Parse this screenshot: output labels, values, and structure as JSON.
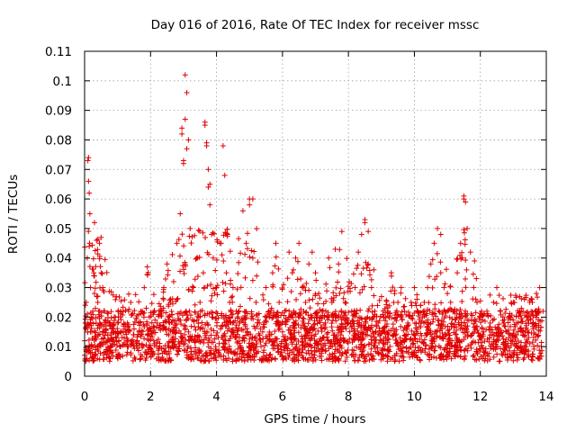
{
  "chart_data": {
    "type": "scatter",
    "title": "Day 016 of 2016, Rate Of TEC Index for receiver mssc",
    "xlabel": "GPS time / hours",
    "ylabel": "ROTI / TECUs",
    "xlim": [
      0,
      14
    ],
    "ylim": [
      0,
      0.11
    ],
    "xticks": [
      "0",
      "2",
      "4",
      "6",
      "8",
      "10",
      "12",
      "14"
    ],
    "yticks": [
      "0",
      "0.01",
      "0.02",
      "0.03",
      "0.04",
      "0.05",
      "0.06",
      "0.07",
      "0.08",
      "0.09",
      "0.1",
      "0.11"
    ],
    "grid": true,
    "marker": "+",
    "series": [
      {
        "name": "ROTI",
        "color": "#e00000",
        "x": [
          0.0,
          0.02,
          0.05,
          0.08,
          0.1,
          0.12,
          0.15,
          0.18,
          0.2,
          0.22,
          0.25,
          0.28,
          0.3,
          0.35,
          0.4,
          0.45,
          0.5,
          0.55,
          0.6,
          0.65,
          0.7,
          0.75,
          0.8,
          0.9,
          1.0,
          1.1,
          1.2,
          1.3,
          1.4,
          1.5,
          1.6,
          1.7,
          1.8,
          1.9,
          2.0,
          2.1,
          2.2,
          2.3,
          2.4,
          2.5,
          2.6,
          2.7,
          2.8,
          2.9,
          2.95,
          3.0,
          3.05,
          3.1,
          3.15,
          3.2,
          3.3,
          3.4,
          3.5,
          3.6,
          3.65,
          3.7,
          3.75,
          3.8,
          3.85,
          3.9,
          4.0,
          4.1,
          4.2,
          4.3,
          4.4,
          4.5,
          4.6,
          4.7,
          4.8,
          4.9,
          5.0,
          5.1,
          5.2,
          5.3,
          5.4,
          5.5,
          5.6,
          5.7,
          5.8,
          5.9,
          6.0,
          6.1,
          6.2,
          6.3,
          6.4,
          6.5,
          6.6,
          6.7,
          6.8,
          6.9,
          7.0,
          7.1,
          7.2,
          7.3,
          7.4,
          7.5,
          7.6,
          7.7,
          7.8,
          7.9,
          8.0,
          8.1,
          8.2,
          8.3,
          8.4,
          8.5,
          8.6,
          8.7,
          8.8,
          8.9,
          9.0,
          9.1,
          9.2,
          9.3,
          9.4,
          9.5,
          9.6,
          9.7,
          9.8,
          9.9,
          10.0,
          10.1,
          10.2,
          10.3,
          10.4,
          10.5,
          10.6,
          10.7,
          10.8,
          10.9,
          11.0,
          11.1,
          11.2,
          11.3,
          11.4,
          11.5,
          11.6,
          11.7,
          11.8,
          11.9,
          12.0,
          12.1,
          12.2,
          12.3,
          12.4,
          12.5,
          12.6,
          12.7,
          12.8,
          12.9,
          13.0,
          13.1,
          13.2,
          13.3,
          13.4,
          13.5,
          13.6,
          13.7,
          13.8,
          13.9,
          0.12,
          0.14,
          0.16,
          0.3,
          0.5,
          2.95,
          3.05,
          3.1,
          3.0,
          3.65,
          3.7,
          3.75,
          3.8,
          4.25,
          5.0,
          5.1,
          8.5,
          8.6,
          11.5,
          11.55,
          10.8,
          7.6,
          6.2
        ],
        "y": [
          0.012,
          0.018,
          0.025,
          0.04,
          0.073,
          0.066,
          0.045,
          0.03,
          0.02,
          0.015,
          0.022,
          0.035,
          0.028,
          0.018,
          0.025,
          0.045,
          0.035,
          0.03,
          0.022,
          0.016,
          0.012,
          0.018,
          0.014,
          0.02,
          0.015,
          0.022,
          0.013,
          0.018,
          0.025,
          0.016,
          0.012,
          0.014,
          0.02,
          0.037,
          0.015,
          0.012,
          0.018,
          0.022,
          0.03,
          0.038,
          0.025,
          0.032,
          0.045,
          0.055,
          0.082,
          0.073,
          0.102,
          0.096,
          0.08,
          0.05,
          0.03,
          0.04,
          0.025,
          0.035,
          0.085,
          0.078,
          0.064,
          0.058,
          0.048,
          0.04,
          0.03,
          0.045,
          0.078,
          0.035,
          0.025,
          0.03,
          0.022,
          0.018,
          0.056,
          0.045,
          0.06,
          0.04,
          0.025,
          0.018,
          0.015,
          0.03,
          0.02,
          0.035,
          0.045,
          0.025,
          0.015,
          0.012,
          0.02,
          0.035,
          0.04,
          0.045,
          0.03,
          0.025,
          0.038,
          0.042,
          0.035,
          0.028,
          0.022,
          0.018,
          0.04,
          0.025,
          0.02,
          0.038,
          0.049,
          0.025,
          0.018,
          0.022,
          0.03,
          0.042,
          0.048,
          0.053,
          0.038,
          0.03,
          0.022,
          0.018,
          0.012,
          0.015,
          0.022,
          0.035,
          0.028,
          0.025,
          0.03,
          0.022,
          0.018,
          0.025,
          0.03,
          0.022,
          0.018,
          0.025,
          0.03,
          0.038,
          0.045,
          0.05,
          0.035,
          0.03,
          0.028,
          0.025,
          0.022,
          0.035,
          0.045,
          0.06,
          0.05,
          0.042,
          0.03,
          0.025,
          0.02,
          0.015,
          0.022,
          0.018,
          0.025,
          0.03,
          0.022,
          0.018,
          0.015,
          0.02,
          0.025,
          0.018,
          0.022,
          0.015,
          0.02,
          0.025,
          0.018,
          0.028,
          0.03,
          0.022,
          0.074,
          0.062,
          0.055,
          0.052,
          0.047,
          0.084,
          0.087,
          0.077,
          0.072,
          0.086,
          0.079,
          0.07,
          0.065,
          0.068,
          0.058,
          0.06,
          0.052,
          0.049,
          0.061,
          0.059,
          0.048,
          0.043,
          0.042
        ]
      }
    ],
    "baseline_band": {
      "lower": 0.005,
      "upper": 0.028
    }
  }
}
